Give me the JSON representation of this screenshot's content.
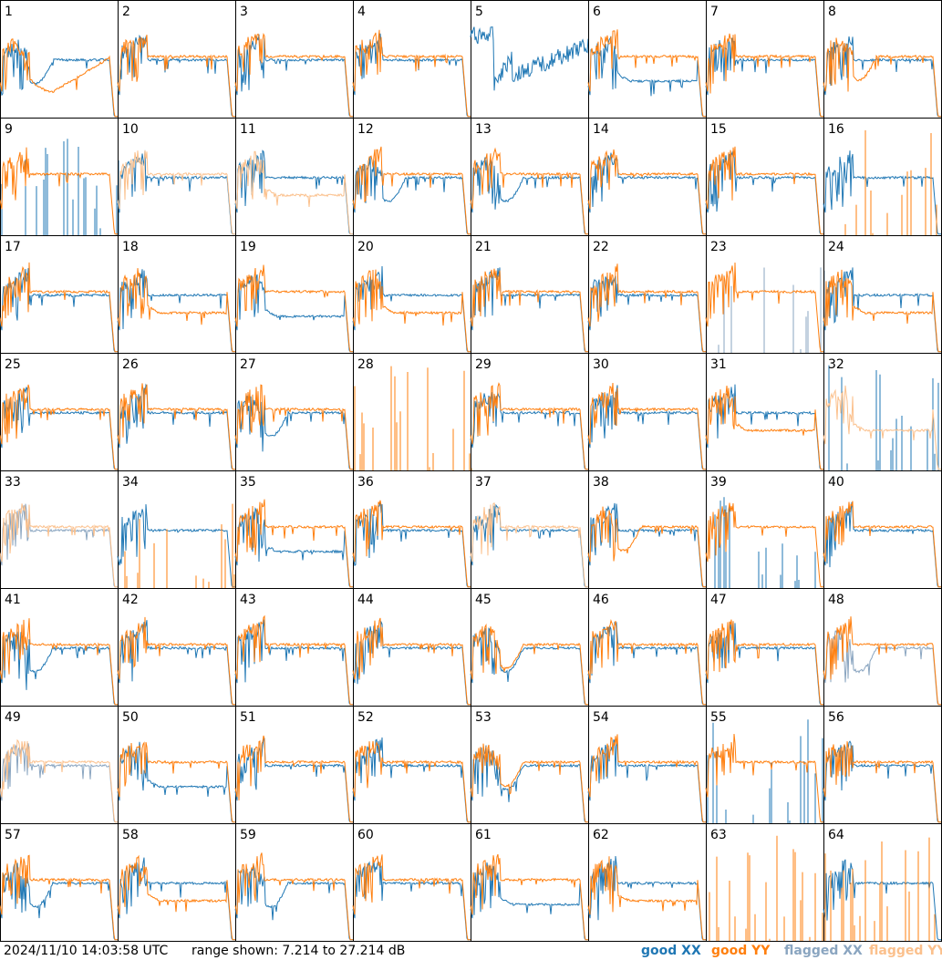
{
  "footer": {
    "timestamp": "2024/11/10 14:03:58 UTC",
    "range_text": "range shown: 7.214 to 27.214 dB"
  },
  "legend": [
    {
      "key": "good_xx",
      "label": "good XX",
      "color": "#1f77b4"
    },
    {
      "key": "good_yy",
      "label": "good YY",
      "color": "#ff7f0e"
    },
    {
      "key": "flagged_xx",
      "label": "flagged XX",
      "color": "#8aa5c0"
    },
    {
      "key": "flagged_yy",
      "label": "flagged YY",
      "color": "#fbc08c"
    }
  ],
  "chart_data": {
    "type": "line",
    "ylim": [
      7.214,
      27.214
    ],
    "yunit": "dB",
    "panels": [
      {
        "label": "1",
        "xx": "good",
        "yy": "good",
        "xx_shape": "dip",
        "yy_shape": "bowl"
      },
      {
        "label": "2",
        "xx": "good",
        "yy": "good",
        "xx_shape": "normal",
        "yy_shape": "normal"
      },
      {
        "label": "3",
        "xx": "good",
        "yy": "good",
        "xx_shape": "normal",
        "yy_shape": "normal"
      },
      {
        "label": "4",
        "xx": "good",
        "yy": "good",
        "xx_shape": "normal",
        "yy_shape": "normal"
      },
      {
        "label": "5",
        "xx": "good",
        "yy": "none",
        "xx_shape": "noisy",
        "yy_shape": "none"
      },
      {
        "label": "6",
        "xx": "good",
        "yy": "good",
        "xx_shape": "low",
        "yy_shape": "normal"
      },
      {
        "label": "7",
        "xx": "good",
        "yy": "good",
        "xx_shape": "normal",
        "yy_shape": "normal"
      },
      {
        "label": "8",
        "xx": "good",
        "yy": "good",
        "xx_shape": "normal",
        "yy_shape": "dip"
      },
      {
        "label": "9",
        "xx": "good",
        "yy": "good",
        "xx_shape": "spikes",
        "yy_shape": "normal"
      },
      {
        "label": "10",
        "xx": "good",
        "yy": "flagged",
        "xx_shape": "normal",
        "yy_shape": "normal"
      },
      {
        "label": "11",
        "xx": "good",
        "yy": "flagged",
        "xx_shape": "normal",
        "yy_shape": "low"
      },
      {
        "label": "12",
        "xx": "good",
        "yy": "good",
        "xx_shape": "dip",
        "yy_shape": "normal"
      },
      {
        "label": "13",
        "xx": "good",
        "yy": "good",
        "xx_shape": "dip",
        "yy_shape": "normal"
      },
      {
        "label": "14",
        "xx": "good",
        "yy": "good",
        "xx_shape": "normal",
        "yy_shape": "normal"
      },
      {
        "label": "15",
        "xx": "good",
        "yy": "good",
        "xx_shape": "normal",
        "yy_shape": "normal"
      },
      {
        "label": "16",
        "xx": "good",
        "yy": "good",
        "xx_shape": "normal",
        "yy_shape": "spikes"
      },
      {
        "label": "17",
        "xx": "good",
        "yy": "good",
        "xx_shape": "normal",
        "yy_shape": "normal"
      },
      {
        "label": "18",
        "xx": "good",
        "yy": "good",
        "xx_shape": "normal",
        "yy_shape": "low"
      },
      {
        "label": "19",
        "xx": "good",
        "yy": "good",
        "xx_shape": "low",
        "yy_shape": "normal"
      },
      {
        "label": "20",
        "xx": "good",
        "yy": "good",
        "xx_shape": "normal",
        "yy_shape": "low"
      },
      {
        "label": "21",
        "xx": "good",
        "yy": "good",
        "xx_shape": "normal",
        "yy_shape": "normal"
      },
      {
        "label": "22",
        "xx": "good",
        "yy": "good",
        "xx_shape": "normal",
        "yy_shape": "normal"
      },
      {
        "label": "23",
        "xx": "flagged",
        "yy": "good",
        "xx_shape": "spikes",
        "yy_shape": "normal"
      },
      {
        "label": "24",
        "xx": "good",
        "yy": "good",
        "xx_shape": "normal",
        "yy_shape": "low"
      },
      {
        "label": "25",
        "xx": "good",
        "yy": "good",
        "xx_shape": "normal",
        "yy_shape": "normal"
      },
      {
        "label": "26",
        "xx": "good",
        "yy": "good",
        "xx_shape": "normal",
        "yy_shape": "normal"
      },
      {
        "label": "27",
        "xx": "good",
        "yy": "good",
        "xx_shape": "dip",
        "yy_shape": "normal"
      },
      {
        "label": "28",
        "xx": "none",
        "yy": "good",
        "xx_shape": "none",
        "yy_shape": "spikes"
      },
      {
        "label": "29",
        "xx": "good",
        "yy": "good",
        "xx_shape": "normal",
        "yy_shape": "normal"
      },
      {
        "label": "30",
        "xx": "good",
        "yy": "good",
        "xx_shape": "normal",
        "yy_shape": "normal"
      },
      {
        "label": "31",
        "xx": "good",
        "yy": "good",
        "xx_shape": "normal",
        "yy_shape": "low"
      },
      {
        "label": "32",
        "xx": "good",
        "yy": "flagged",
        "xx_shape": "spikes",
        "yy_shape": "low"
      },
      {
        "label": "33",
        "xx": "flagged",
        "yy": "flagged",
        "xx_shape": "normal",
        "yy_shape": "normal"
      },
      {
        "label": "34",
        "xx": "good",
        "yy": "good",
        "xx_shape": "normal",
        "yy_shape": "spikes"
      },
      {
        "label": "35",
        "xx": "good",
        "yy": "good",
        "xx_shape": "low",
        "yy_shape": "normal"
      },
      {
        "label": "36",
        "xx": "good",
        "yy": "good",
        "xx_shape": "normal",
        "yy_shape": "normal"
      },
      {
        "label": "37",
        "xx": "good",
        "yy": "flagged",
        "xx_shape": "normal",
        "yy_shape": "normal"
      },
      {
        "label": "38",
        "xx": "good",
        "yy": "good",
        "xx_shape": "normal",
        "yy_shape": "dip"
      },
      {
        "label": "39",
        "xx": "good",
        "yy": "good",
        "xx_shape": "spikes",
        "yy_shape": "normal"
      },
      {
        "label": "40",
        "xx": "good",
        "yy": "good",
        "xx_shape": "normal",
        "yy_shape": "normal"
      },
      {
        "label": "41",
        "xx": "good",
        "yy": "good",
        "xx_shape": "dip",
        "yy_shape": "normal"
      },
      {
        "label": "42",
        "xx": "good",
        "yy": "good",
        "xx_shape": "normal",
        "yy_shape": "normal"
      },
      {
        "label": "43",
        "xx": "good",
        "yy": "good",
        "xx_shape": "normal",
        "yy_shape": "normal"
      },
      {
        "label": "44",
        "xx": "good",
        "yy": "good",
        "xx_shape": "normal",
        "yy_shape": "normal"
      },
      {
        "label": "45",
        "xx": "good",
        "yy": "good",
        "xx_shape": "dip",
        "yy_shape": "dip"
      },
      {
        "label": "46",
        "xx": "good",
        "yy": "good",
        "xx_shape": "normal",
        "yy_shape": "normal"
      },
      {
        "label": "47",
        "xx": "good",
        "yy": "good",
        "xx_shape": "normal",
        "yy_shape": "normal"
      },
      {
        "label": "48",
        "xx": "flagged",
        "yy": "good",
        "xx_shape": "dip",
        "yy_shape": "normal"
      },
      {
        "label": "49",
        "xx": "flagged",
        "yy": "flagged",
        "xx_shape": "normal",
        "yy_shape": "normal"
      },
      {
        "label": "50",
        "xx": "good",
        "yy": "good",
        "xx_shape": "low",
        "yy_shape": "normal"
      },
      {
        "label": "51",
        "xx": "good",
        "yy": "good",
        "xx_shape": "normal",
        "yy_shape": "normal"
      },
      {
        "label": "52",
        "xx": "good",
        "yy": "good",
        "xx_shape": "normal",
        "yy_shape": "normal"
      },
      {
        "label": "53",
        "xx": "good",
        "yy": "good",
        "xx_shape": "dip",
        "yy_shape": "dip"
      },
      {
        "label": "54",
        "xx": "good",
        "yy": "good",
        "xx_shape": "normal",
        "yy_shape": "normal"
      },
      {
        "label": "55",
        "xx": "good",
        "yy": "good",
        "xx_shape": "spikes",
        "yy_shape": "normal"
      },
      {
        "label": "56",
        "xx": "good",
        "yy": "good",
        "xx_shape": "normal",
        "yy_shape": "normal"
      },
      {
        "label": "57",
        "xx": "good",
        "yy": "good",
        "xx_shape": "dip",
        "yy_shape": "normal"
      },
      {
        "label": "58",
        "xx": "good",
        "yy": "good",
        "xx_shape": "normal",
        "yy_shape": "low"
      },
      {
        "label": "59",
        "xx": "good",
        "yy": "good",
        "xx_shape": "dip",
        "yy_shape": "normal"
      },
      {
        "label": "60",
        "xx": "good",
        "yy": "good",
        "xx_shape": "normal",
        "yy_shape": "normal"
      },
      {
        "label": "61",
        "xx": "good",
        "yy": "good",
        "xx_shape": "low",
        "yy_shape": "normal"
      },
      {
        "label": "62",
        "xx": "good",
        "yy": "good",
        "xx_shape": "normal",
        "yy_shape": "low"
      },
      {
        "label": "63",
        "xx": "none",
        "yy": "good",
        "xx_shape": "none",
        "yy_shape": "spikes"
      },
      {
        "label": "64",
        "xx": "good",
        "yy": "good",
        "xx_shape": "normal",
        "yy_shape": "spikes"
      }
    ]
  }
}
